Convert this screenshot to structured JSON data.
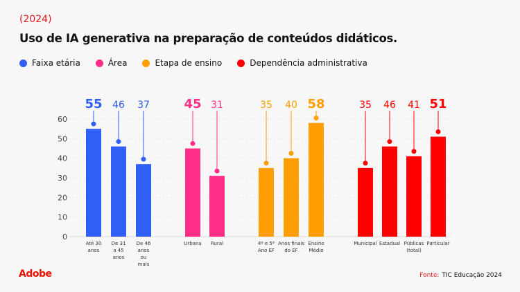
{
  "header": {
    "year": "(2024)",
    "title": "Uso de IA generativa na preparação de conteúdos didáticos."
  },
  "footer": {
    "logo": "Adobe",
    "source_label": "Fonte:",
    "source": "TIC Educação 2024"
  },
  "chart_data": {
    "type": "bar",
    "title": "Uso de IA generativa na preparação de conteúdos didáticos.",
    "ylim": [
      0,
      60
    ],
    "yticks": [
      0,
      10,
      20,
      30,
      40,
      50,
      60
    ],
    "grid": true,
    "legend_placement": "top-left",
    "series": [
      {
        "name": "Faixa etária",
        "color": "#2f5ff5",
        "categories": [
          "Até 30 anos",
          "De 31 a 45 anos",
          "De 46 anos ou mais"
        ],
        "values": [
          55,
          46,
          37
        ]
      },
      {
        "name": "Área",
        "color": "#ff2d87",
        "categories": [
          "Urbana",
          "Rural"
        ],
        "values": [
          45,
          31
        ]
      },
      {
        "name": "Etapa de ensino",
        "color": "#ff9e00",
        "categories": [
          "4º e 5º Ano EF",
          "Anos finais do EF",
          "Ensino Médio"
        ],
        "values": [
          35,
          40,
          58
        ]
      },
      {
        "name": "Dependência administrativa",
        "color": "#ff0000",
        "categories": [
          "Municipal",
          "Estadual",
          "Públicas (total)",
          "Particular"
        ],
        "values": [
          35,
          46,
          41,
          51
        ]
      }
    ],
    "category_label_lines": [
      [
        [
          "Até 30",
          "anos"
        ],
        [
          "De 31",
          "a 45",
          "anos"
        ],
        [
          "De 46",
          "anos",
          "ou",
          "mais"
        ]
      ],
      [
        [
          "Urbana"
        ],
        [
          "Rural"
        ]
      ],
      [
        [
          "4º e 5º",
          "Ano EF"
        ],
        [
          "Anos finais",
          "do EF"
        ],
        [
          "Ensino",
          "Médio"
        ]
      ],
      [
        [
          "Municipal"
        ],
        [
          "Estadual"
        ],
        [
          "Públicas",
          "(total)"
        ],
        [
          "Particular"
        ]
      ]
    ]
  }
}
